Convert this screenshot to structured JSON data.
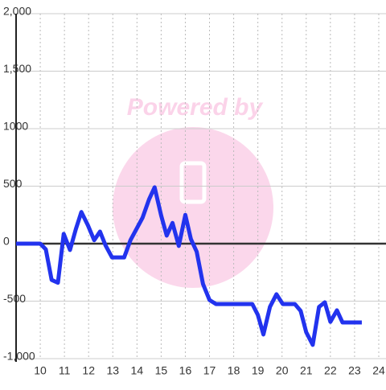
{
  "chart_data": {
    "type": "line",
    "watermark": "Powered by",
    "x": [
      9,
      10,
      10.23,
      10.47,
      10.73,
      10.97,
      11.23,
      11.47,
      11.7,
      11.97,
      12.23,
      12.47,
      12.7,
      12.97,
      13.47,
      13.73,
      14.23,
      14.5,
      14.73,
      15,
      15.23,
      15.47,
      15.73,
      16,
      16.23,
      16.47,
      16.73,
      17,
      17.27,
      18.77,
      19,
      19.23,
      19.5,
      19.77,
      20.03,
      20.53,
      20.77,
      21,
      21.27,
      21.53,
      21.77,
      22,
      22.27,
      22.5,
      23.3
    ],
    "series": [
      {
        "color": "#2233ee",
        "values": [
          0,
          0,
          -50,
          -315,
          -340,
          85,
          -55,
          125,
          275,
          160,
          30,
          105,
          -15,
          -120,
          -120,
          30,
          225,
          385,
          490,
          245,
          70,
          180,
          -20,
          250,
          40,
          -70,
          -350,
          -490,
          -525,
          -525,
          -620,
          -790,
          -550,
          -440,
          -525,
          -525,
          -585,
          -770,
          -880,
          -550,
          -510,
          -680,
          -580,
          -685,
          -685
        ]
      }
    ],
    "xlim": [
      9,
      24.3
    ],
    "xticks": [
      10,
      11,
      12,
      13,
      14,
      15,
      16,
      17,
      18,
      19,
      20,
      21,
      22,
      23,
      24
    ],
    "ylim": [
      -1000,
      2000
    ],
    "yticks": [
      {
        "value": -1000,
        "label": "-1,000"
      },
      -500,
      0,
      500,
      1000,
      {
        "value": 1500,
        "label": "1,500"
      },
      {
        "value": 2000,
        "label": "2,000"
      }
    ],
    "grid": true
  }
}
